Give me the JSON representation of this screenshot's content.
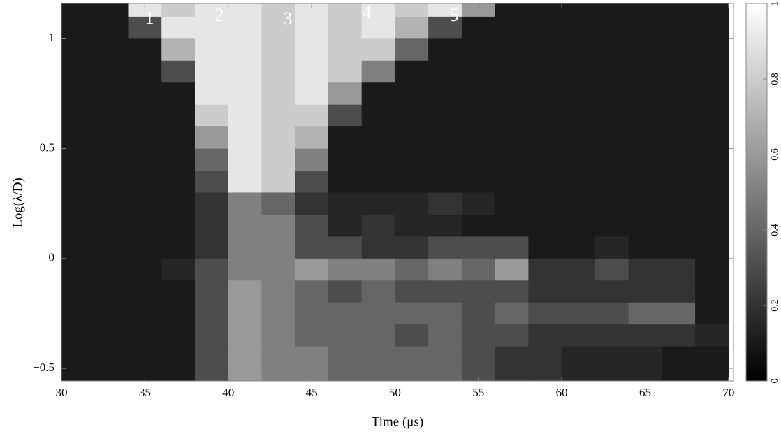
{
  "chart_data": {
    "type": "heatmap",
    "xlabel": "Time (μs)",
    "ylabel": "Log(λ/D)",
    "xlim": [
      30,
      70.3
    ],
    "ylim": [
      -0.557,
      1.16
    ],
    "xticks": [
      30,
      35,
      40,
      45,
      50,
      55,
      60,
      65,
      70
    ],
    "yticks": [
      {
        "value": -0.5,
        "label": "−0.5"
      },
      0,
      0.5,
      1
    ],
    "zlim": [
      0,
      1
    ],
    "zticks": [
      0,
      0.2,
      0.4,
      0.6,
      0.8,
      1
    ],
    "annotations": [
      "1",
      "2",
      "3",
      "4",
      "5"
    ],
    "x": [
      31,
      33,
      35,
      37,
      39,
      41,
      43,
      45,
      47,
      49,
      51,
      53,
      55,
      57,
      59,
      61,
      63,
      65,
      67,
      69
    ],
    "y": [
      1.15,
      1.05,
      0.95,
      0.85,
      0.75,
      0.65,
      0.55,
      0.45,
      0.35,
      0.25,
      0.15,
      0.05,
      -0.05,
      -0.15,
      -0.25,
      -0.35,
      -0.45,
      -0.55
    ],
    "z": [
      [
        0.1,
        0.1,
        0.9,
        0.8,
        0.9,
        0.9,
        0.8,
        0.9,
        0.8,
        0.9,
        0.8,
        0.9,
        0.6,
        0.1,
        0.1,
        0.1,
        0.1,
        0.1,
        0.1,
        0.1
      ],
      [
        0.1,
        0.1,
        0.3,
        0.9,
        0.9,
        0.9,
        0.8,
        0.9,
        0.8,
        0.9,
        0.7,
        0.3,
        0.1,
        0.1,
        0.1,
        0.1,
        0.1,
        0.1,
        0.1,
        0.1
      ],
      [
        0.1,
        0.1,
        0.1,
        0.7,
        0.9,
        0.9,
        0.8,
        0.9,
        0.8,
        0.8,
        0.4,
        0.1,
        0.1,
        0.1,
        0.1,
        0.1,
        0.1,
        0.1,
        0.1,
        0.1
      ],
      [
        0.1,
        0.1,
        0.1,
        0.3,
        0.9,
        0.9,
        0.8,
        0.9,
        0.8,
        0.5,
        0.1,
        0.1,
        0.1,
        0.1,
        0.1,
        0.1,
        0.1,
        0.1,
        0.1,
        0.1
      ],
      [
        0.1,
        0.1,
        0.1,
        0.1,
        0.9,
        0.9,
        0.8,
        0.9,
        0.6,
        0.1,
        0.1,
        0.1,
        0.1,
        0.1,
        0.1,
        0.1,
        0.1,
        0.1,
        0.1,
        0.1
      ],
      [
        0.1,
        0.1,
        0.1,
        0.1,
        0.8,
        0.9,
        0.8,
        0.8,
        0.3,
        0.1,
        0.1,
        0.1,
        0.1,
        0.1,
        0.1,
        0.1,
        0.1,
        0.1,
        0.1,
        0.1
      ],
      [
        0.1,
        0.1,
        0.1,
        0.1,
        0.6,
        0.9,
        0.8,
        0.7,
        0.1,
        0.1,
        0.1,
        0.1,
        0.1,
        0.1,
        0.1,
        0.1,
        0.1,
        0.1,
        0.1,
        0.1
      ],
      [
        0.1,
        0.1,
        0.1,
        0.1,
        0.4,
        0.9,
        0.8,
        0.5,
        0.1,
        0.1,
        0.1,
        0.1,
        0.1,
        0.1,
        0.1,
        0.1,
        0.1,
        0.1,
        0.1,
        0.1
      ],
      [
        0.1,
        0.1,
        0.1,
        0.1,
        0.3,
        0.9,
        0.8,
        0.3,
        0.1,
        0.1,
        0.1,
        0.1,
        0.1,
        0.1,
        0.1,
        0.1,
        0.1,
        0.1,
        0.1,
        0.1
      ],
      [
        0.1,
        0.1,
        0.1,
        0.1,
        0.2,
        0.5,
        0.4,
        0.2,
        0.15,
        0.15,
        0.15,
        0.2,
        0.15,
        0.1,
        0.1,
        0.1,
        0.1,
        0.1,
        0.1,
        0.1
      ],
      [
        0.1,
        0.1,
        0.1,
        0.1,
        0.2,
        0.5,
        0.5,
        0.3,
        0.15,
        0.2,
        0.15,
        0.15,
        0.1,
        0.1,
        0.1,
        0.1,
        0.1,
        0.1,
        0.1,
        0.1
      ],
      [
        0.1,
        0.1,
        0.1,
        0.1,
        0.2,
        0.5,
        0.5,
        0.3,
        0.3,
        0.2,
        0.2,
        0.3,
        0.3,
        0.3,
        0.1,
        0.1,
        0.15,
        0.1,
        0.1,
        0.1
      ],
      [
        0.1,
        0.1,
        0.1,
        0.15,
        0.3,
        0.5,
        0.5,
        0.6,
        0.5,
        0.5,
        0.4,
        0.5,
        0.4,
        0.6,
        0.2,
        0.2,
        0.3,
        0.2,
        0.2,
        0.1
      ],
      [
        0.1,
        0.1,
        0.1,
        0.1,
        0.3,
        0.6,
        0.5,
        0.4,
        0.3,
        0.4,
        0.3,
        0.3,
        0.3,
        0.3,
        0.2,
        0.2,
        0.2,
        0.2,
        0.2,
        0.1
      ],
      [
        0.1,
        0.1,
        0.1,
        0.1,
        0.3,
        0.6,
        0.5,
        0.4,
        0.4,
        0.4,
        0.4,
        0.4,
        0.3,
        0.4,
        0.3,
        0.3,
        0.3,
        0.4,
        0.4,
        0.1
      ],
      [
        0.1,
        0.1,
        0.1,
        0.1,
        0.3,
        0.6,
        0.5,
        0.4,
        0.4,
        0.4,
        0.3,
        0.4,
        0.3,
        0.3,
        0.2,
        0.2,
        0.2,
        0.2,
        0.2,
        0.15
      ],
      [
        0.1,
        0.1,
        0.1,
        0.1,
        0.3,
        0.6,
        0.5,
        0.5,
        0.4,
        0.4,
        0.4,
        0.4,
        0.3,
        0.2,
        0.2,
        0.15,
        0.15,
        0.15,
        0.1,
        0.1
      ],
      [
        0.1,
        0.1,
        0.1,
        0.1,
        0.3,
        0.6,
        0.5,
        0.5,
        0.4,
        0.4,
        0.4,
        0.4,
        0.3,
        0.2,
        0.2,
        0.15,
        0.15,
        0.15,
        0.1,
        0.1
      ]
    ]
  }
}
